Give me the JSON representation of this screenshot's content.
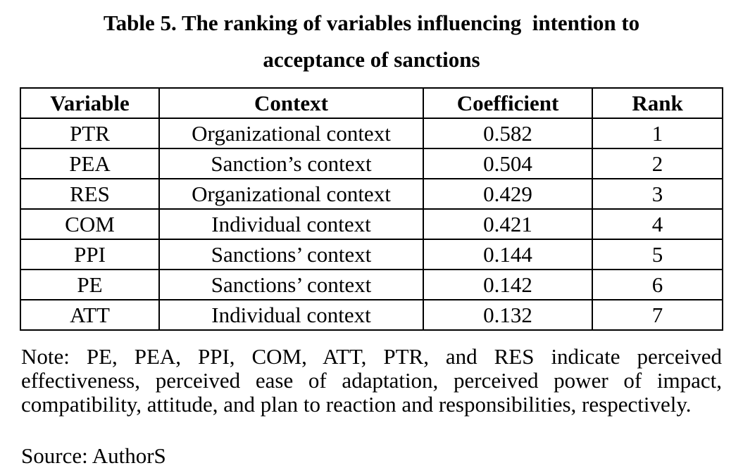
{
  "title": {
    "line1": "Table 5. The ranking of variables influencing  intention to",
    "line2": "acceptance of sanctions"
  },
  "table": {
    "headers": [
      "Variable",
      "Context",
      "Coefficient",
      "Rank"
    ],
    "rows": [
      [
        "PTR",
        "Organizational context",
        "0.582",
        "1"
      ],
      [
        "PEA",
        "Sanction’s context",
        "0.504",
        "2"
      ],
      [
        "RES",
        "Organizational context",
        "0.429",
        "3"
      ],
      [
        "COM",
        "Individual context",
        "0.421",
        "4"
      ],
      [
        "PPI",
        "Sanctions’ context",
        "0.144",
        "5"
      ],
      [
        "PE",
        "Sanctions’ context",
        "0.142",
        "6"
      ],
      [
        "ATT",
        "Individual context",
        "0.132",
        "7"
      ]
    ]
  },
  "note": {
    "lines": [
      "Note: PE, PEA, PPI, COM, ATT, PTR, and RES indicate perceived",
      "effectiveness, perceived ease of adaptation, perceived power of impact,",
      "compatibility, attitude, and plan to reaction and responsibilities, respectively."
    ]
  },
  "source": "Source: AuthorS"
}
